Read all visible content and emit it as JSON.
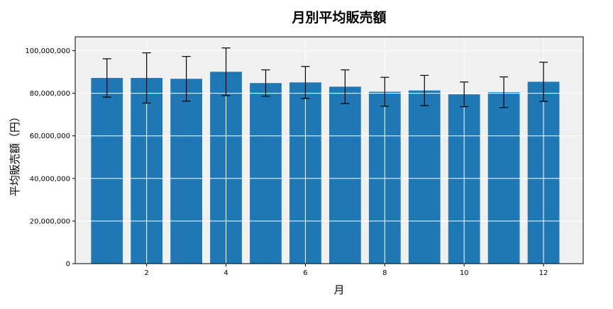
{
  "chart_data": {
    "type": "bar",
    "title": "月別平均販売額",
    "xlabel": "月",
    "ylabel": "平均販売額（円）",
    "x": [
      1,
      2,
      3,
      4,
      5,
      6,
      7,
      8,
      9,
      10,
      11,
      12
    ],
    "values": [
      87200000,
      87200000,
      86800000,
      90100000,
      84800000,
      85100000,
      83100000,
      80700000,
      81300000,
      79500000,
      80500000,
      85400000
    ],
    "error": [
      9000000,
      11800000,
      10500000,
      11200000,
      6200000,
      7500000,
      7900000,
      6800000,
      7100000,
      5800000,
      7200000,
      9200000
    ],
    "xticks": [
      2,
      4,
      6,
      8,
      10,
      12
    ],
    "xtick_labels": [
      "2",
      "4",
      "6",
      "8",
      "10",
      "12"
    ],
    "yticks": [
      0,
      20000000,
      40000000,
      60000000,
      80000000,
      100000000
    ],
    "ytick_labels": [
      "0",
      "20,000,000",
      "40,000,000",
      "60,000,000",
      "80,000,000",
      "100,000,000"
    ],
    "xlim": [
      0.2,
      13.0
    ],
    "ylim": [
      0,
      106500000
    ],
    "grid": true,
    "bar_color": "#1f77b4",
    "background_color": "#f0f0f0"
  }
}
